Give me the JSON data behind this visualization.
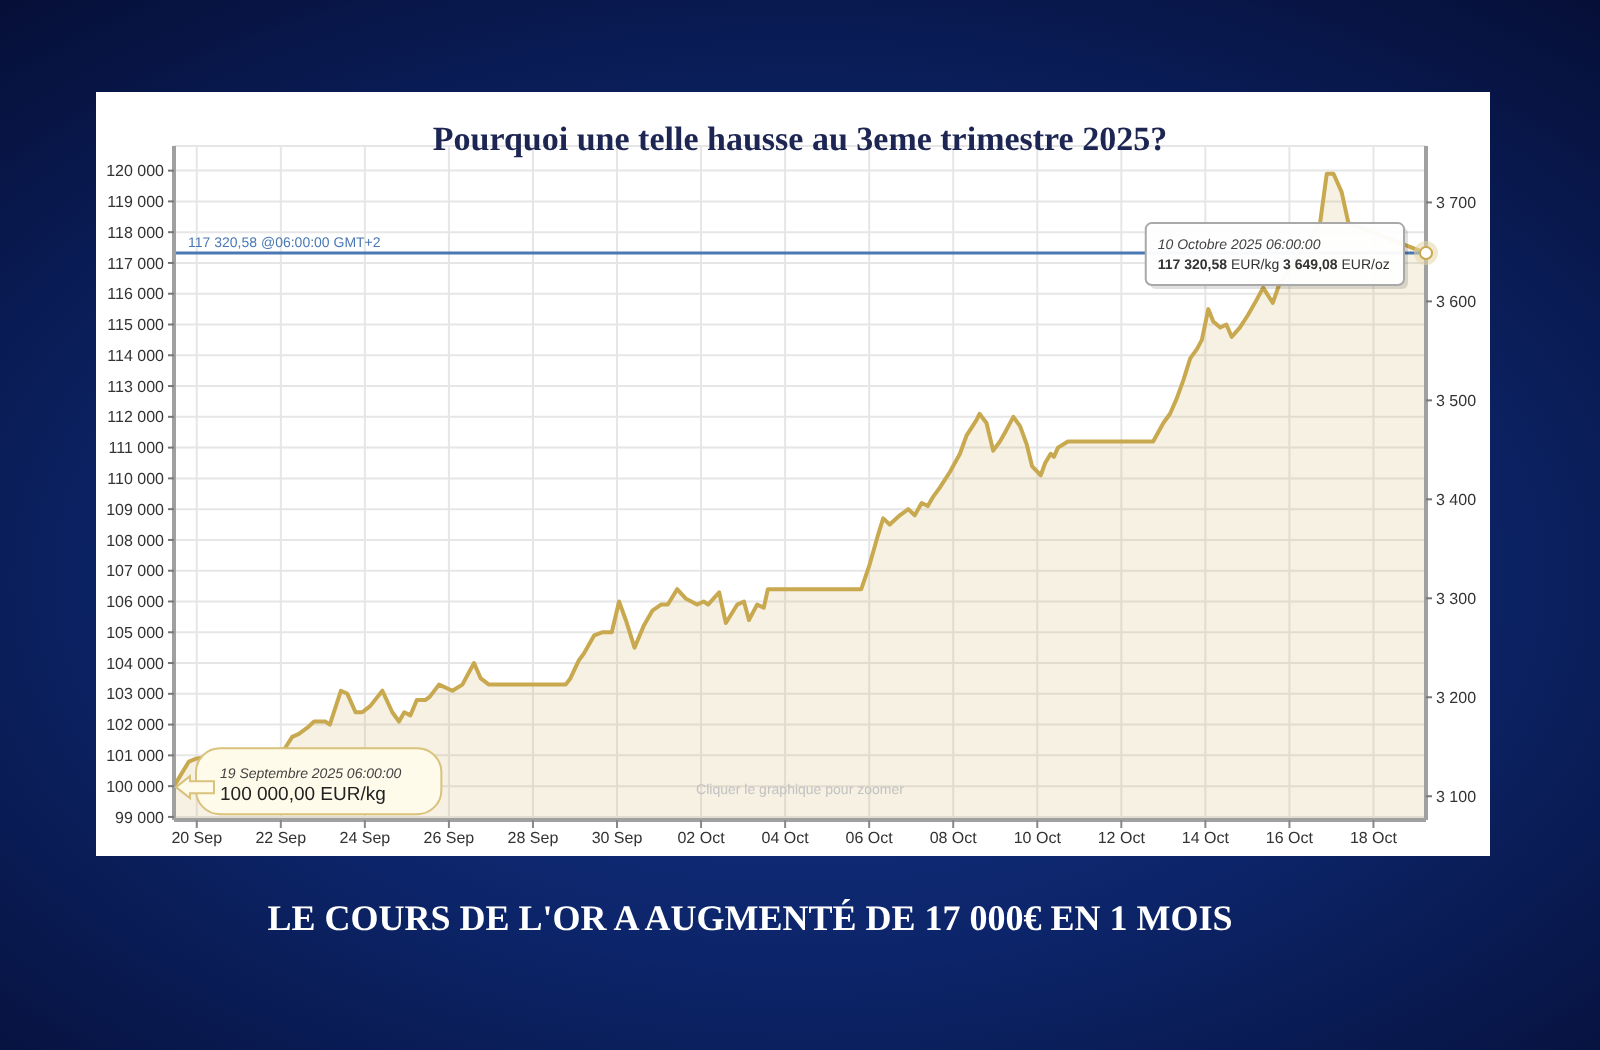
{
  "chart_data": {
    "type": "area",
    "title": "Pourquoi une telle hausse au 3eme trimestre 2025?",
    "x": [
      "2025-09-19T11:00",
      "2025-09-19T19:30",
      "2025-09-20T00:00",
      "2025-09-22T02:00",
      "2025-09-22T06:30",
      "2025-09-22T10:20",
      "2025-09-22T15:10",
      "2025-09-22T19:00",
      "2025-09-23T01:30",
      "2025-09-23T04:00",
      "2025-09-23T10:20",
      "2025-09-23T14:00",
      "2025-09-23T18:40",
      "2025-09-23T22:30",
      "2025-09-24T03:00",
      "2025-09-24T10:00",
      "2025-09-24T15:40",
      "2025-09-24T19:30",
      "2025-09-24T22:30",
      "2025-09-25T02:00",
      "2025-09-25T05:40",
      "2025-09-25T10:40",
      "2025-09-25T13:00",
      "2025-09-25T18:20",
      "2025-09-26T02:00",
      "2025-09-26T07:40",
      "2025-09-26T14:20",
      "2025-09-26T18:10",
      "2025-09-26T22:50",
      "2025-09-28T18:40",
      "2025-09-28T21:20",
      "2025-09-29T02:20",
      "2025-09-29T05:00",
      "2025-09-29T11:00",
      "2025-09-29T15:30",
      "2025-09-29T21:00",
      "2025-09-30T01:10",
      "2025-09-30T05:00",
      "2025-09-30T10:00",
      "2025-09-30T15:10",
      "2025-09-30T20:10",
      "2025-10-01T01:10",
      "2025-10-01T05:00",
      "2025-10-01T10:20",
      "2025-10-01T15:10",
      "2025-10-01T21:40",
      "2025-10-02T01:30",
      "2025-10-02T04:00",
      "2025-10-02T10:20",
      "2025-10-02T14:10",
      "2025-10-02T20:40",
      "2025-10-03T00:30",
      "2025-10-03T03:20",
      "2025-10-03T08:00",
      "2025-10-03T11:50",
      "2025-10-03T14:10",
      "2025-10-05T19:30",
      "2025-10-06T00:15",
      "2025-10-06T05:15",
      "2025-10-06T08:00",
      "2025-10-06T11:45",
      "2025-10-06T17:30",
      "2025-10-06T22:20",
      "2025-10-07T02:00",
      "2025-10-07T06:00",
      "2025-10-07T09:30",
      "2025-10-07T12:30",
      "2025-10-07T16:20",
      "2025-10-07T22:00",
      "2025-10-08T03:50",
      "2025-10-08T07:40",
      "2025-10-08T13:20",
      "2025-10-08T15:00",
      "2025-10-08T19:00",
      "2025-10-08T22:50",
      "2025-10-09T02:40",
      "2025-10-09T05:40",
      "2025-10-09T10:20",
      "2025-10-09T14:10",
      "2025-10-09T18:00",
      "2025-10-09T21:00",
      "2025-10-10T02:00",
      "2025-10-10T04:30",
      "2025-10-10T07:40",
      "2025-10-10T09:30",
      "2025-10-10T11:50",
      "2025-10-10T17:30",
      "2025-10-12T18:10",
      "2025-10-13T00:00",
      "2025-10-13T03:50",
      "2025-10-13T07:40",
      "2025-10-13T11:30",
      "2025-10-13T15:20",
      "2025-10-13T19:10",
      "2025-10-13T22:00",
      "2025-10-14T01:40",
      "2025-10-14T04:30",
      "2025-10-14T08:30",
      "2025-10-14T12:00",
      "2025-10-14T15:00",
      "2025-10-14T19:40",
      "2025-10-15T00:15",
      "2025-10-15T05:15",
      "2025-10-15T09:00",
      "2025-10-15T14:30",
      "2025-10-15T18:10",
      "2025-10-16T17:30",
      "2025-10-16T21:20",
      "2025-10-17T01:10",
      "2025-10-17T05:50",
      "2025-10-17T09:40",
      "2025-10-19T06:00"
    ],
    "values": [
      100000,
      100800,
      100900,
      101200,
      101600,
      101700,
      101900,
      102100,
      102100,
      102000,
      103100,
      103000,
      102400,
      102400,
      102600,
      103100,
      102400,
      102100,
      102400,
      102300,
      102800,
      102800,
      102900,
      103300,
      103100,
      103300,
      104000,
      103500,
      103300,
      103300,
      103500,
      104100,
      104300,
      104900,
      105000,
      105000,
      106000,
      105400,
      104500,
      105200,
      105700,
      105900,
      105900,
      106400,
      106100,
      105900,
      106000,
      105900,
      106300,
      105300,
      105900,
      106000,
      105400,
      105900,
      105800,
      106400,
      106400,
      107200,
      108200,
      108700,
      108500,
      108800,
      109000,
      108800,
      109200,
      109100,
      109400,
      109700,
      110200,
      110800,
      111400,
      111900,
      112100,
      111800,
      110900,
      111200,
      111500,
      112000,
      111700,
      111100,
      110400,
      110100,
      110500,
      110800,
      110700,
      111000,
      111200,
      111200,
      111800,
      112100,
      112600,
      113200,
      113900,
      114200,
      114500,
      115500,
      115100,
      114900,
      115000,
      114600,
      114900,
      115300,
      115800,
      116200,
      115700,
      116300,
      118300,
      119900,
      119900,
      119300,
      118300,
      117320.58
    ],
    "color": "#c9a94f",
    "xlim": [
      "2025-09-19T11:00",
      "2025-10-19T06:00"
    ],
    "xticks": [
      {
        "value": "2025-09-20",
        "label": "20 Sep"
      },
      {
        "value": "2025-09-22",
        "label": "22 Sep"
      },
      {
        "value": "2025-09-24",
        "label": "24 Sep"
      },
      {
        "value": "2025-09-26",
        "label": "26 Sep"
      },
      {
        "value": "2025-09-28",
        "label": "28 Sep"
      },
      {
        "value": "2025-09-30",
        "label": "30 Sep"
      },
      {
        "value": "2025-10-02",
        "label": "02 Oct"
      },
      {
        "value": "2025-10-04",
        "label": "04 Oct"
      },
      {
        "value": "2025-10-06",
        "label": "06 Oct"
      },
      {
        "value": "2025-10-08",
        "label": "08 Oct"
      },
      {
        "value": "2025-10-10",
        "label": "10 Oct"
      },
      {
        "value": "2025-10-12",
        "label": "12 Oct"
      },
      {
        "value": "2025-10-14",
        "label": "14 Oct"
      },
      {
        "value": "2025-10-16",
        "label": "16 Oct"
      },
      {
        "value": "2025-10-18",
        "label": "18 Oct"
      }
    ],
    "ylim": [
      98900,
      120800
    ],
    "yticks": [
      {
        "value": 99000,
        "label": "99 000"
      },
      {
        "value": 100000,
        "label": "100 000"
      },
      {
        "value": 101000,
        "label": "101 000"
      },
      {
        "value": 102000,
        "label": "102 000"
      },
      {
        "value": 103000,
        "label": "103 000"
      },
      {
        "value": 104000,
        "label": "104 000"
      },
      {
        "value": 105000,
        "label": "105 000"
      },
      {
        "value": 106000,
        "label": "106 000"
      },
      {
        "value": 107000,
        "label": "107 000"
      },
      {
        "value": 108000,
        "label": "108 000"
      },
      {
        "value": 109000,
        "label": "109 000"
      },
      {
        "value": 110000,
        "label": "110 000"
      },
      {
        "value": 111000,
        "label": "111 000"
      },
      {
        "value": 112000,
        "label": "112 000"
      },
      {
        "value": 113000,
        "label": "113 000"
      },
      {
        "value": 114000,
        "label": "114 000"
      },
      {
        "value": 115000,
        "label": "115 000"
      },
      {
        "value": 116000,
        "label": "116 000"
      },
      {
        "value": 117000,
        "label": "117 000"
      },
      {
        "value": 118000,
        "label": "118 000"
      },
      {
        "value": 119000,
        "label": "119 000"
      },
      {
        "value": 120000,
        "label": "120 000"
      }
    ],
    "y2lim": [
      3076,
      3757
    ],
    "y2ticks": [
      {
        "value": 3100,
        "label": "3 100"
      },
      {
        "value": 3200,
        "label": "3 200"
      },
      {
        "value": 3300,
        "label": "3 300"
      },
      {
        "value": 3400,
        "label": "3 400"
      },
      {
        "value": 3500,
        "label": "3 500"
      },
      {
        "value": 3600,
        "label": "3 600"
      },
      {
        "value": 3700,
        "label": "3 700"
      }
    ],
    "grid": true,
    "ref_lines": [
      {
        "axis": "y",
        "value": 117320.58,
        "label": "117 320,58 @06:00:00 GMT+2",
        "color": "#4a78b5"
      }
    ],
    "annotations": [
      {
        "text": "19 Septembre 2025 06:00:00\n100 000,00 EUR/kg",
        "x": "2025-09-19T11:00",
        "y": 100000
      },
      {
        "text": "10 Octobre 2025 06:00:00\n117 320,58 EUR/kg 3 649,08 EUR/oz",
        "x": "2025-10-19T06:00",
        "y": 117320.58
      },
      "Cliquer le graphique pour zoomer",
      "LE COURS DE L'OR A AUGMENTÉ DE 17 000€ EN 1 MOIS"
    ]
  }
}
